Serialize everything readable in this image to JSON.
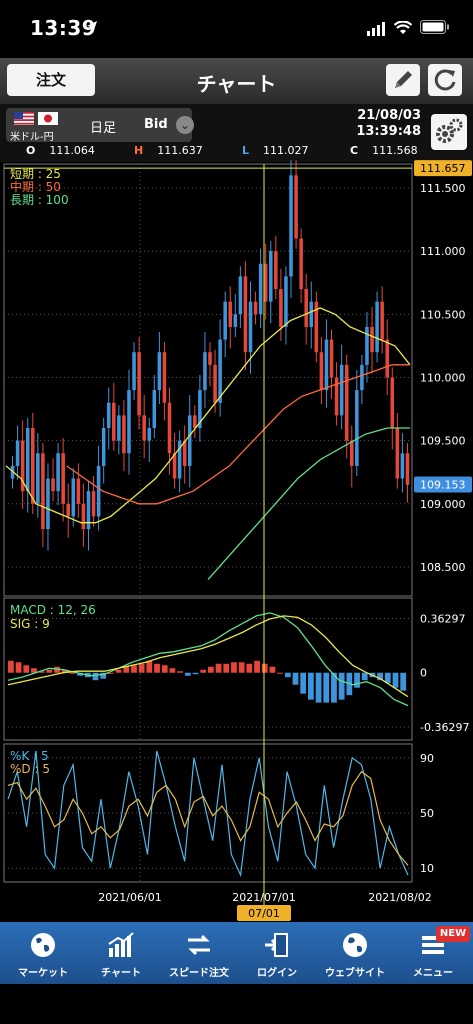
{
  "status": {
    "time": "13:39"
  },
  "nav": {
    "order_label": "注文",
    "title": "チャート"
  },
  "info": {
    "symbol": "米ドル-円",
    "period": "日足",
    "price_type": "Bid",
    "date": "21/08/03",
    "clock": "13:39:48",
    "ohlc": [
      {
        "key": "O",
        "value": "111.064",
        "color": "#ffffff"
      },
      {
        "key": "H",
        "value": "111.637",
        "color": "#ff6a3d"
      },
      {
        "key": "L",
        "value": "111.027",
        "color": "#4fa3e8"
      },
      {
        "key": "C",
        "value": "111.568",
        "color": "#ffffff"
      }
    ]
  },
  "chart_data": [
    {
      "type": "candlestick",
      "panel": "price",
      "legend": [
        {
          "label": "短期 : 25",
          "color": "#e8e84a"
        },
        {
          "label": "中期 : 50",
          "color": "#ff6a3d"
        },
        {
          "label": "長期 : 100",
          "color": "#5fe08a"
        }
      ],
      "y_ticks": [
        "111.500",
        "111.000",
        "110.500",
        "110.000",
        "109.500",
        "109.000",
        "108.500"
      ],
      "y_values": [
        111.5,
        111.0,
        110.5,
        110.0,
        109.5,
        109.0,
        108.5
      ],
      "ylim": [
        108.27,
        111.69
      ],
      "high_marker": "111.657",
      "current_marker": "109.153",
      "current_value": 109.153,
      "high_value": 111.657,
      "candles_close_approx": [
        109.3,
        109.5,
        109.1,
        109.6,
        109.0,
        109.4,
        108.8,
        109.2,
        109.1,
        109.4,
        109.0,
        108.9,
        109.2,
        109.0,
        108.8,
        109.1,
        108.9,
        109.3,
        109.6,
        109.8,
        109.5,
        109.7,
        109.4,
        109.9,
        110.2,
        109.7,
        109.5,
        109.6,
        109.9,
        110.2,
        109.8,
        109.4,
        109.2,
        109.5,
        109.3,
        109.7,
        109.6,
        109.9,
        110.2,
        110.1,
        109.8,
        110.3,
        110.6,
        110.4,
        110.5,
        110.8,
        110.2,
        110.6,
        110.5,
        110.9,
        110.6,
        111.0,
        110.7,
        110.4,
        110.8,
        111.6,
        111.1,
        110.7,
        110.4,
        110.6,
        110.2,
        109.9,
        110.3,
        110.0,
        109.7,
        110.1,
        109.5,
        109.3,
        109.9,
        110.1,
        110.4,
        110.2,
        110.6,
        110.3,
        110.0,
        109.6,
        109.2,
        109.4,
        109.15
      ],
      "series": [
        {
          "name": "短期 : 25",
          "values": [
            109.3,
            109.2,
            109.0,
            108.95,
            108.9,
            108.85,
            108.85,
            108.9,
            109.0,
            109.1,
            109.2,
            109.35,
            109.5,
            109.65,
            109.8,
            109.95,
            110.1,
            110.25,
            110.35,
            110.45,
            110.5,
            110.55,
            110.5,
            110.4,
            110.35,
            110.3,
            110.25,
            110.1
          ]
        },
        {
          "name": "中期 : 50",
          "values": [
            109.3,
            109.2,
            109.1,
            109.05,
            109.0,
            109.0,
            109.05,
            109.1,
            109.2,
            109.3,
            109.45,
            109.6,
            109.75,
            109.85,
            109.9,
            109.95,
            110.0,
            110.05,
            110.1,
            110.1
          ]
        },
        {
          "name": "長期 : 100",
          "values": [
            108.4,
            108.6,
            108.8,
            109.0,
            109.2,
            109.35,
            109.45,
            109.55,
            109.6,
            109.6
          ]
        }
      ]
    },
    {
      "type": "histogram",
      "panel": "macd",
      "legend": [
        {
          "label": "MACD : 12, 26",
          "color": "#5fe08a"
        },
        {
          "label": "SIG : 9",
          "color": "#e8e84a"
        }
      ],
      "y_ticks": [
        "0.36297",
        "0",
        "-0.36297"
      ],
      "y_values": [
        0.36297,
        0,
        -0.36297
      ],
      "ylim": [
        -0.45,
        0.5
      ],
      "histogram": [
        0.08,
        0.07,
        0.05,
        0.03,
        0.01,
        0.02,
        0.04,
        0.02,
        0.0,
        -0.02,
        -0.03,
        -0.05,
        -0.04,
        0.0,
        0.02,
        0.04,
        0.05,
        0.06,
        0.08,
        0.06,
        0.05,
        0.03,
        0.01,
        -0.02,
        -0.01,
        0.02,
        0.04,
        0.06,
        0.06,
        0.07,
        0.07,
        0.06,
        0.08,
        0.06,
        0.04,
        0.0,
        -0.03,
        -0.08,
        -0.14,
        -0.18,
        -0.2,
        -0.2,
        -0.2,
        -0.18,
        -0.15,
        -0.1,
        -0.05,
        -0.03,
        -0.05,
        -0.07,
        -0.1,
        -0.12
      ],
      "series": [
        {
          "name": "MACD : 12, 26",
          "values": [
            -0.05,
            -0.03,
            0.0,
            0.03,
            0.02,
            0.0,
            -0.02,
            -0.01,
            0.03,
            0.07,
            0.1,
            0.13,
            0.14,
            0.16,
            0.18,
            0.22,
            0.28,
            0.33,
            0.38,
            0.4,
            0.37,
            0.3,
            0.18,
            0.05,
            -0.05,
            -0.08,
            -0.06,
            -0.1,
            -0.18,
            -0.22
          ]
        },
        {
          "name": "SIG : 9",
          "values": [
            -0.08,
            -0.06,
            -0.04,
            -0.02,
            0.0,
            0.01,
            0.01,
            0.01,
            0.03,
            0.05,
            0.07,
            0.1,
            0.12,
            0.14,
            0.16,
            0.19,
            0.23,
            0.27,
            0.32,
            0.36,
            0.38,
            0.37,
            0.32,
            0.24,
            0.14,
            0.05,
            0.0,
            -0.04,
            -0.1,
            -0.16
          ]
        }
      ]
    },
    {
      "type": "line",
      "panel": "stochastic",
      "legend": [
        {
          "label": "%K : 5",
          "color": "#4fb8e8"
        },
        {
          "label": "%D : 5",
          "color": "#e8b84a"
        }
      ],
      "y_ticks": [
        "90",
        "50",
        "10"
      ],
      "y_values": [
        90,
        50,
        10
      ],
      "ylim": [
        0,
        100
      ],
      "series": [
        {
          "name": "%K : 5",
          "values": [
            60,
            80,
            40,
            95,
            20,
            10,
            70,
            85,
            25,
            15,
            60,
            10,
            40,
            80,
            55,
            20,
            95,
            70,
            40,
            15,
            90,
            60,
            30,
            85,
            20,
            5,
            60,
            90,
            40,
            15,
            80,
            55,
            20,
            10,
            70,
            25,
            60,
            90,
            85,
            60,
            10,
            40,
            20,
            5
          ]
        },
        {
          "name": "%D : 5",
          "values": [
            70,
            72,
            60,
            68,
            55,
            40,
            45,
            60,
            50,
            35,
            40,
            32,
            38,
            55,
            60,
            48,
            65,
            70,
            60,
            40,
            58,
            62,
            48,
            55,
            45,
            30,
            40,
            65,
            60,
            40,
            50,
            58,
            45,
            30,
            42,
            40,
            48,
            70,
            80,
            75,
            45,
            30,
            20,
            12
          ]
        }
      ],
      "x_ticks": [
        "2021/06/01",
        "2021/07/01",
        "2021/08/02"
      ],
      "cursor_label": "07/01"
    }
  ],
  "tabs": [
    {
      "label": "マーケット",
      "icon": "globe-icon"
    },
    {
      "label": "チャート",
      "icon": "chart-icon"
    },
    {
      "label": "スピード注文",
      "icon": "speed-order-icon"
    },
    {
      "label": "ログイン",
      "icon": "login-icon"
    },
    {
      "label": "ウェブサイト",
      "icon": "website-globe-icon"
    },
    {
      "label": "メニュー",
      "icon": "menu-icon"
    }
  ],
  "new_badge": "NEW"
}
